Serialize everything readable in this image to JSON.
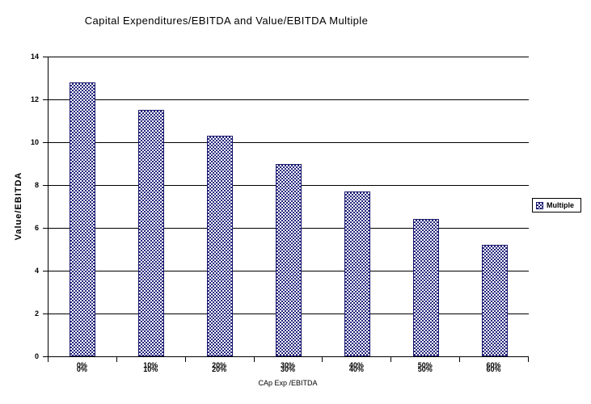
{
  "chart_data": {
    "type": "bar",
    "title": "Capital Expenditures/EBITDA and Value/EBITDA Multiple",
    "categories": [
      "0%",
      "10%",
      "20%",
      "30%",
      "40%",
      "50%",
      "60%"
    ],
    "series": [
      {
        "name": "Multiple",
        "values": [
          12.8,
          11.5,
          10.3,
          9.0,
          7.7,
          6.4,
          5.2
        ]
      }
    ],
    "xlabel": "CAp Exp /EBITDA",
    "ylabel": "Value/EBITDA",
    "ylim": [
      0,
      14
    ],
    "yticks": [
      0,
      2,
      4,
      6,
      8,
      10,
      12,
      14
    ],
    "grid": true,
    "legend_position": "right",
    "category_labels_double_printed": true
  },
  "legend": {
    "label": "Multiple"
  },
  "colors": {
    "bar_pattern_dark": "#26267E",
    "bar_pattern_light": "#FFFFFF",
    "bar_border": "#16166A",
    "axis": "#000000",
    "background": "#FFFFFF"
  }
}
